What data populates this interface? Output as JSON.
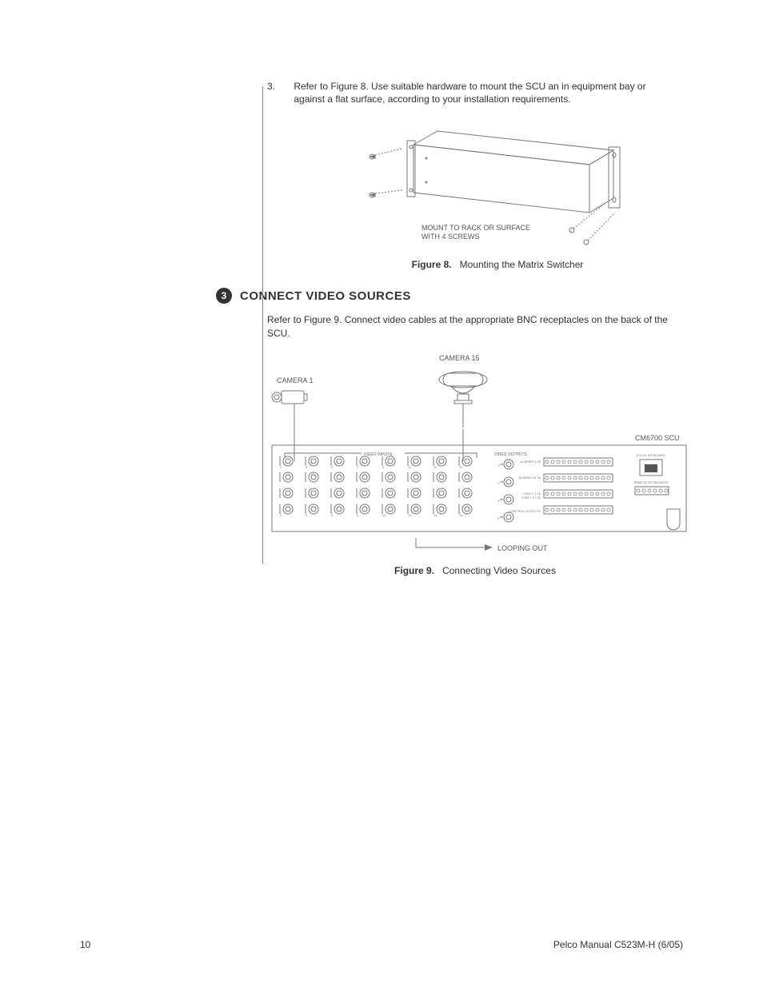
{
  "step3": {
    "num": "3.",
    "text": "Refer to Figure 8. Use suitable hardware to mount the SCU an in equipment bay or against a flat surface, according to your installation requirements."
  },
  "fig8": {
    "mount_label_line1": "MOUNT TO RACK OR SURFACE",
    "mount_label_line2": "WITH 4 SCREWS",
    "caption_bold": "Figure 8.",
    "caption_text": "Mounting the Matrix Switcher"
  },
  "section": {
    "badge": "3",
    "title": "CONNECT VIDEO SOURCES"
  },
  "para1": "Refer to Figure 9. Connect video cables at the appropriate BNC receptacles on the back of the SCU.",
  "fig9": {
    "cam1": "CAMERA 1",
    "cam15": "CAMERA 15",
    "scu": "CM6700 SCU",
    "video_inputs": "VIDEO INPUTS",
    "video_outputs": "VIDEO OUTPUTS",
    "looping": "LOOPING OUT",
    "alarms_1_18": "ALARMS 1-18",
    "alarms_19_36": "ALARMS 19-36",
    "com1": "COM 1 2-16",
    "com2": "COM 2 17-32",
    "local_kbd": "LOCAL KEYBOARD",
    "remote_kbd": "REMOTE KEYBOARDS",
    "control_out": "CONTROL OUTPUTS",
    "caption_bold": "Figure 9.",
    "caption_text": "Connecting Video Sources",
    "numbers_top": [
      "1",
      "3",
      "5",
      "7",
      "9",
      "11",
      "13",
      "15"
    ],
    "numbers_bot": [
      "2",
      "4",
      "6",
      "8",
      "10",
      "12",
      "14",
      "16"
    ]
  },
  "footer": {
    "page": "10",
    "manual": "Pelco Manual C523M-H (6/05)"
  },
  "colors": {
    "line": "#777777",
    "text": "#555555",
    "dark": "#333333"
  }
}
